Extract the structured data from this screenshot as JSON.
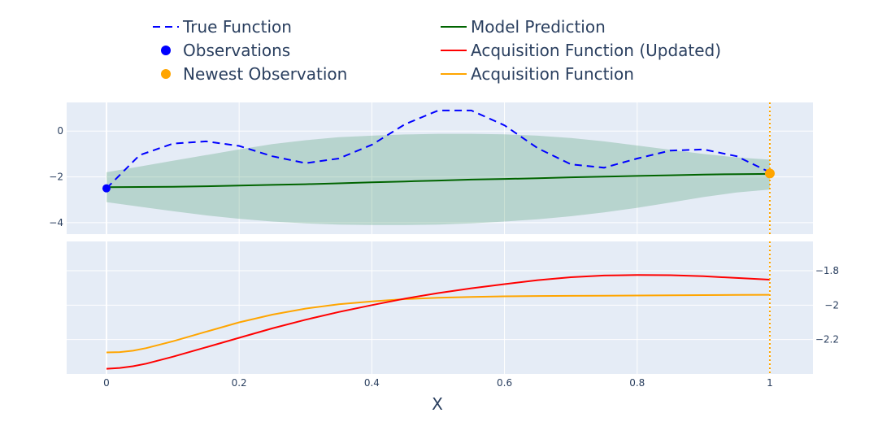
{
  "chart_data": {
    "type": "line",
    "xlabel": "X",
    "xlim": [
      -0.06,
      1.065
    ],
    "x_ticks": [
      0,
      0.2,
      0.4,
      0.6,
      0.8,
      1
    ],
    "x_tick_labels": [
      "0",
      "0.2",
      "0.4",
      "0.6",
      "0.8",
      "1"
    ],
    "grid": true,
    "legend": {
      "placement": "top",
      "entries": [
        {
          "name": "True Function",
          "color": "#0000ff",
          "style": "dash"
        },
        {
          "name": "Model Prediction",
          "color": "#006400",
          "style": "solid"
        },
        {
          "name": "Observations",
          "color": "#0000ff",
          "style": "marker"
        },
        {
          "name": "Acquisition Function (Updated)",
          "color": "#ff0000",
          "style": "solid"
        },
        {
          "name": "Newest Observation",
          "color": "#ffa500",
          "style": "marker"
        },
        {
          "name": "Acquisition Function",
          "color": "#ffa500",
          "style": "solid"
        }
      ]
    },
    "top_panel": {
      "ylim": [
        -4.5,
        1.25
      ],
      "y_ticks": [
        -4,
        -2,
        0
      ],
      "y_tick_labels": [
        "−4",
        "−2",
        "0"
      ],
      "x": [
        0,
        0.05,
        0.1,
        0.15,
        0.2,
        0.25,
        0.3,
        0.35,
        0.4,
        0.45,
        0.5,
        0.55,
        0.6,
        0.65,
        0.7,
        0.75,
        0.8,
        0.85,
        0.9,
        0.95,
        1
      ],
      "true_function": [
        -2.5,
        -1.05,
        -0.55,
        -0.45,
        -0.65,
        -1.1,
        -1.4,
        -1.2,
        -0.6,
        0.3,
        0.9,
        0.9,
        0.25,
        -0.75,
        -1.45,
        -1.6,
        -1.2,
        -0.85,
        -0.8,
        -1.1,
        -1.8
      ],
      "model_prediction": [
        -2.45,
        -2.44,
        -2.43,
        -2.41,
        -2.38,
        -2.35,
        -2.32,
        -2.28,
        -2.24,
        -2.2,
        -2.16,
        -2.12,
        -2.09,
        -2.06,
        -2.02,
        -1.99,
        -1.96,
        -1.93,
        -1.9,
        -1.88,
        -1.87
      ],
      "band_upper": [
        -1.8,
        -1.55,
        -1.3,
        -1.05,
        -0.8,
        -0.57,
        -0.4,
        -0.27,
        -0.2,
        -0.15,
        -0.12,
        -0.12,
        -0.14,
        -0.2,
        -0.3,
        -0.45,
        -0.63,
        -0.82,
        -1.0,
        -1.15,
        -1.25
      ],
      "band_lower": [
        -3.1,
        -3.3,
        -3.5,
        -3.68,
        -3.83,
        -3.95,
        -4.03,
        -4.08,
        -4.1,
        -4.1,
        -4.08,
        -4.03,
        -3.95,
        -3.85,
        -3.72,
        -3.55,
        -3.35,
        -3.12,
        -2.88,
        -2.68,
        -2.55
      ],
      "observations": [
        {
          "x": 0,
          "y": -2.5
        }
      ],
      "newest_observation": {
        "x": 1,
        "y": -1.85
      }
    },
    "bottom_panel": {
      "ylim": [
        -2.4,
        -1.63
      ],
      "y_ticks": [
        -2.2,
        -2,
        -1.8
      ],
      "y_tick_labels": [
        "−2.2",
        "−2",
        "−1.8"
      ],
      "x": [
        0,
        0.02,
        0.04,
        0.06,
        0.1,
        0.15,
        0.2,
        0.25,
        0.3,
        0.35,
        0.4,
        0.45,
        0.5,
        0.55,
        0.6,
        0.65,
        0.7,
        0.75,
        0.8,
        0.85,
        0.9,
        0.95,
        1
      ],
      "acq_updated": [
        -2.37,
        -2.365,
        -2.355,
        -2.34,
        -2.3,
        -2.245,
        -2.19,
        -2.135,
        -2.085,
        -2.04,
        -2.0,
        -1.962,
        -1.93,
        -1.902,
        -1.878,
        -1.855,
        -1.838,
        -1.828,
        -1.825,
        -1.826,
        -1.832,
        -1.842,
        -1.852
      ],
      "acq_original": [
        -2.275,
        -2.273,
        -2.265,
        -2.25,
        -2.21,
        -2.155,
        -2.1,
        -2.055,
        -2.02,
        -1.995,
        -1.978,
        -1.965,
        -1.957,
        -1.952,
        -1.949,
        -1.947,
        -1.946,
        -1.945,
        -1.944,
        -1.943,
        -1.942,
        -1.941,
        -1.94
      ]
    },
    "vertical_marker": {
      "x": 1,
      "color": "#ffa500",
      "style": "dot"
    }
  }
}
